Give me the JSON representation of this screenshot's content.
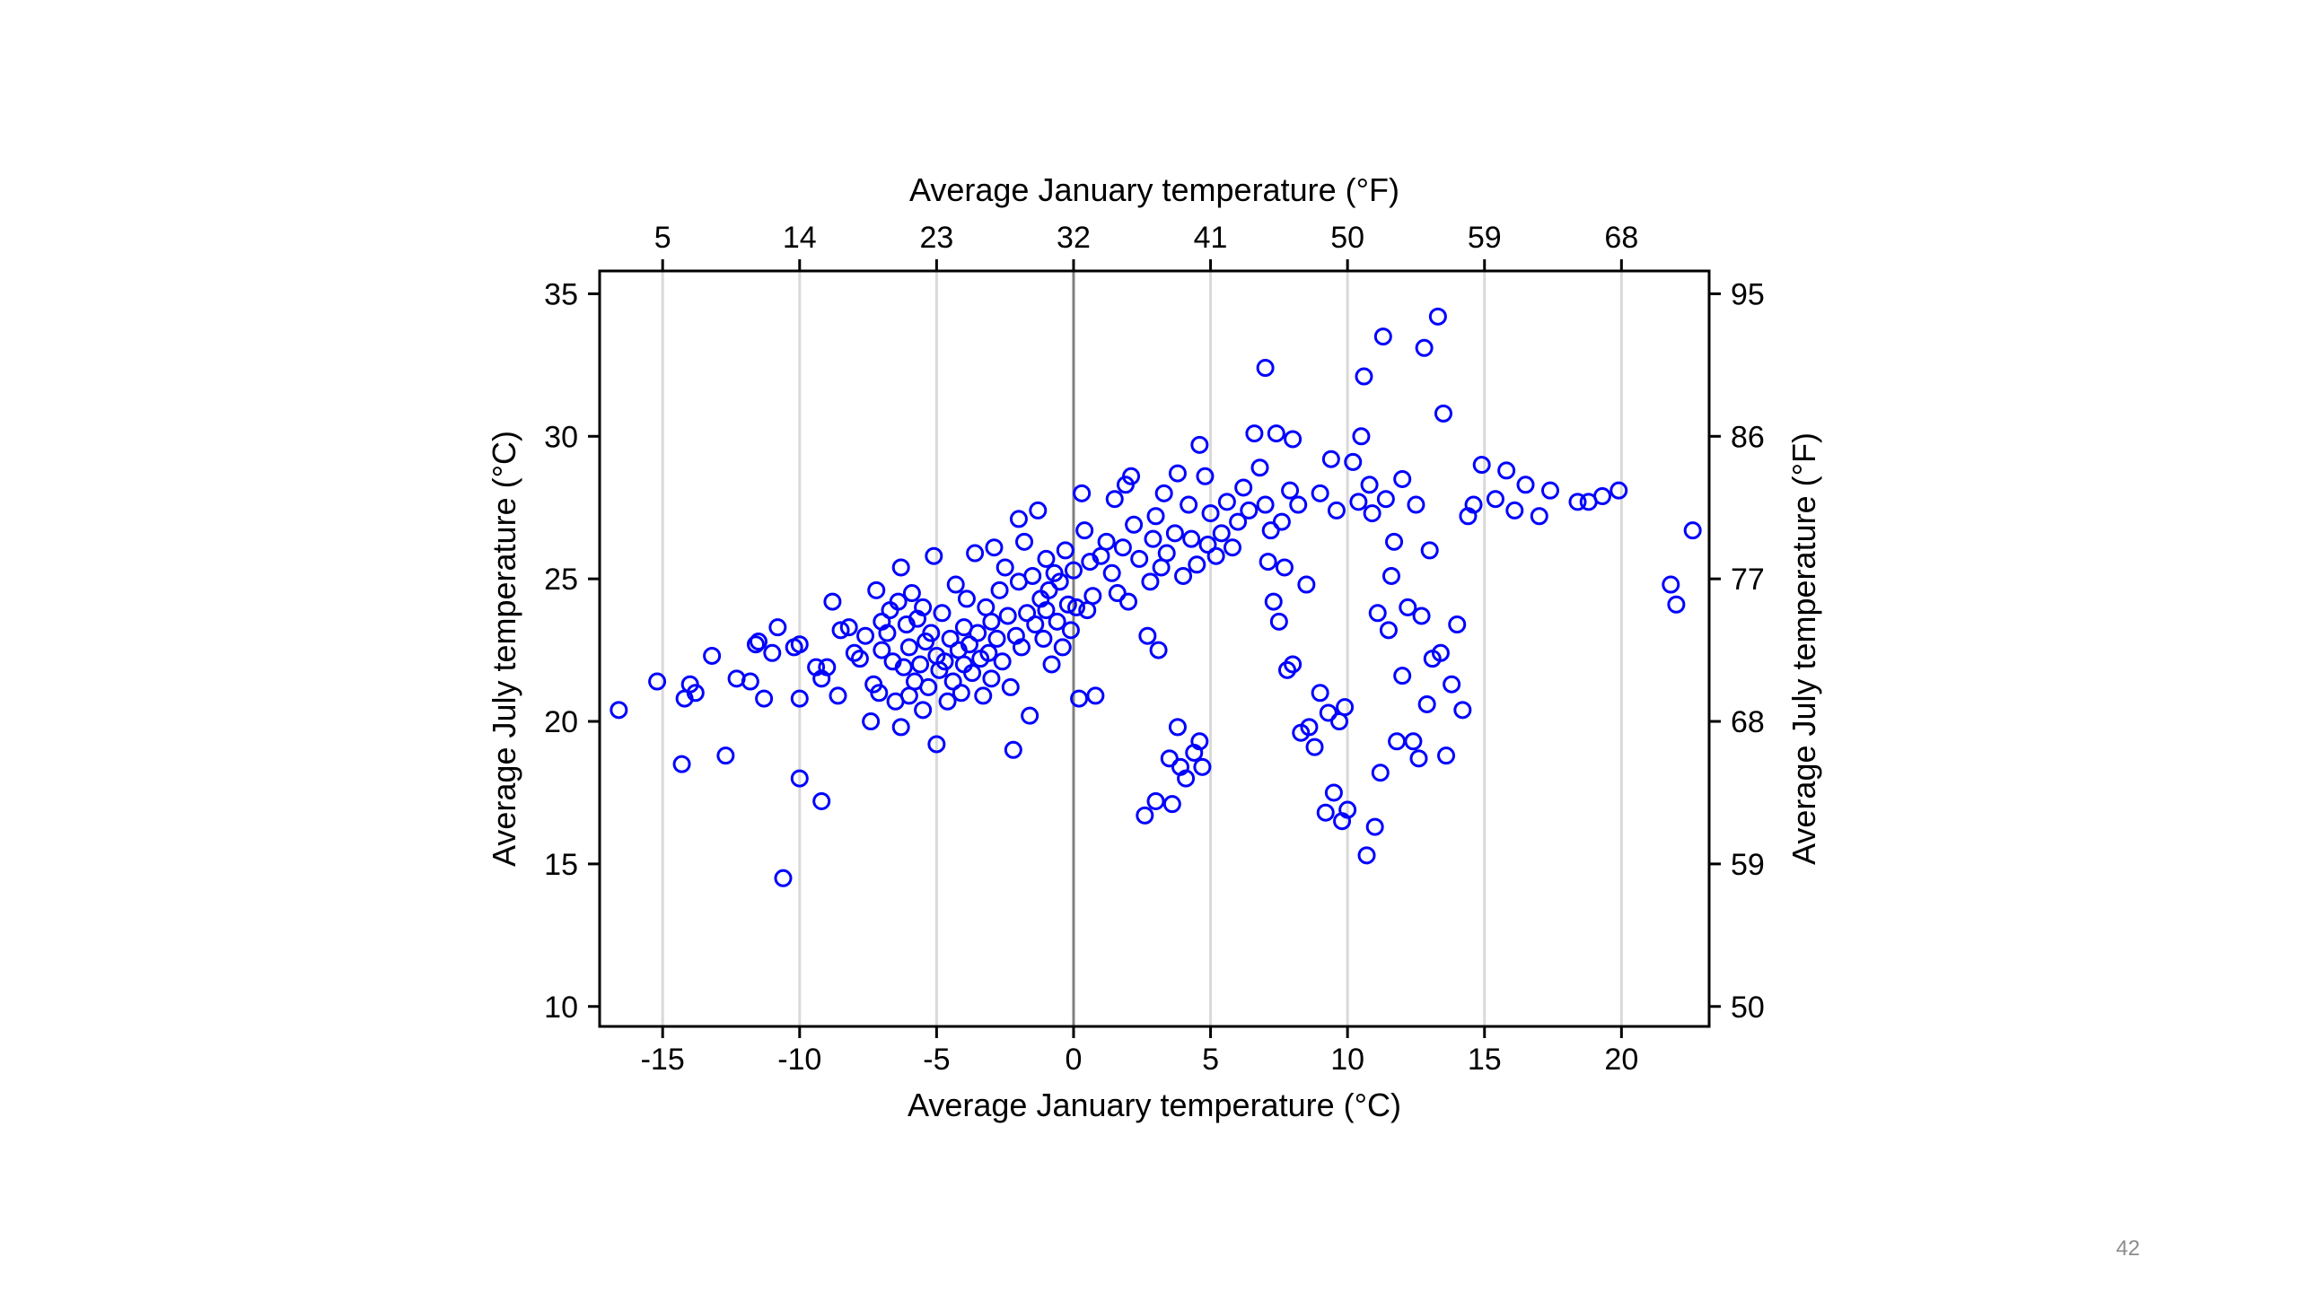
{
  "slide": {
    "page_number": "42"
  },
  "colors": {
    "marker": "#0000ff",
    "gridline": "#d9d9d9",
    "zero_line": "#808080",
    "axis": "#000000"
  },
  "chart_data": {
    "type": "scatter",
    "title": "",
    "xlabel": "Average January temperature (°C)",
    "ylabel": "Average July temperature (°C)",
    "x2label": "Average January temperature (°F)",
    "y2label": "Average July temperature (°F)",
    "xlim": [
      -17.3,
      23.2
    ],
    "ylim": [
      9.3,
      35.8
    ],
    "xticks": [
      -15,
      -10,
      -5,
      0,
      5,
      10,
      15,
      20
    ],
    "xtick_labels": [
      "-15",
      "-10",
      "-5",
      "0",
      "5",
      "10",
      "15",
      "20"
    ],
    "yticks": [
      10,
      15,
      20,
      25,
      30,
      35
    ],
    "ytick_labels": [
      "10",
      "15",
      "20",
      "25",
      "30",
      "35"
    ],
    "x2ticks": [
      -15,
      -10,
      -5,
      0,
      5,
      10,
      15,
      20
    ],
    "x2tick_labels": [
      "5",
      "14",
      "23",
      "32",
      "41",
      "50",
      "59",
      "68"
    ],
    "y2ticks": [
      10,
      15,
      20,
      25,
      30,
      35
    ],
    "y2tick_labels": [
      "50",
      "59",
      "68",
      "77",
      "86",
      "95"
    ],
    "grid": "vertical gridlines at x ticks",
    "marker": "hollow circle",
    "points": [
      [
        -16.6,
        20.4
      ],
      [
        -15.2,
        21.4
      ],
      [
        -14.3,
        18.5
      ],
      [
        -14.2,
        20.8
      ],
      [
        -14.0,
        21.3
      ],
      [
        -13.8,
        21.0
      ],
      [
        -13.2,
        22.3
      ],
      [
        -12.7,
        18.8
      ],
      [
        -12.3,
        21.5
      ],
      [
        -11.8,
        21.4
      ],
      [
        -11.6,
        22.7
      ],
      [
        -11.5,
        22.8
      ],
      [
        -11.3,
        20.8
      ],
      [
        -11.0,
        22.4
      ],
      [
        -10.8,
        23.3
      ],
      [
        -10.6,
        14.5
      ],
      [
        -10.2,
        22.6
      ],
      [
        -10.0,
        18.0
      ],
      [
        -10.0,
        22.7
      ],
      [
        -10.0,
        20.8
      ],
      [
        -9.4,
        21.9
      ],
      [
        -9.2,
        21.5
      ],
      [
        -9.2,
        17.2
      ],
      [
        -9.0,
        21.9
      ],
      [
        -8.8,
        24.2
      ],
      [
        -8.6,
        20.9
      ],
      [
        -8.5,
        23.2
      ],
      [
        -8.2,
        23.3
      ],
      [
        -8.0,
        22.4
      ],
      [
        -7.8,
        22.2
      ],
      [
        -7.6,
        23.0
      ],
      [
        -7.4,
        20.0
      ],
      [
        -7.3,
        21.3
      ],
      [
        -7.2,
        24.6
      ],
      [
        -7.1,
        21.0
      ],
      [
        -7.0,
        22.5
      ],
      [
        -7.0,
        23.5
      ],
      [
        -6.8,
        23.1
      ],
      [
        -6.7,
        23.9
      ],
      [
        -6.6,
        22.1
      ],
      [
        -6.5,
        20.7
      ],
      [
        -6.4,
        24.2
      ],
      [
        -6.3,
        25.4
      ],
      [
        -6.3,
        19.8
      ],
      [
        -6.2,
        21.9
      ],
      [
        -6.1,
        23.4
      ],
      [
        -6.0,
        22.6
      ],
      [
        -6.0,
        20.9
      ],
      [
        -5.9,
        24.5
      ],
      [
        -5.8,
        21.4
      ],
      [
        -5.7,
        23.6
      ],
      [
        -5.6,
        22.0
      ],
      [
        -5.5,
        20.4
      ],
      [
        -5.5,
        24.0
      ],
      [
        -5.4,
        22.8
      ],
      [
        -5.3,
        21.2
      ],
      [
        -5.2,
        23.1
      ],
      [
        -5.1,
        25.8
      ],
      [
        -5.0,
        22.3
      ],
      [
        -5.0,
        19.2
      ],
      [
        -4.9,
        21.8
      ],
      [
        -4.8,
        23.8
      ],
      [
        -4.7,
        22.1
      ],
      [
        -4.6,
        20.7
      ],
      [
        -4.5,
        22.9
      ],
      [
        -4.4,
        21.4
      ],
      [
        -4.3,
        24.8
      ],
      [
        -4.2,
        22.5
      ],
      [
        -4.1,
        21.0
      ],
      [
        -4.0,
        23.3
      ],
      [
        -4.0,
        22.0
      ],
      [
        -3.9,
        24.3
      ],
      [
        -3.8,
        22.7
      ],
      [
        -3.7,
        21.7
      ],
      [
        -3.6,
        25.9
      ],
      [
        -3.5,
        23.1
      ],
      [
        -3.4,
        22.2
      ],
      [
        -3.3,
        20.9
      ],
      [
        -3.2,
        24.0
      ],
      [
        -3.1,
        22.4
      ],
      [
        -3.0,
        23.5
      ],
      [
        -3.0,
        21.5
      ],
      [
        -2.9,
        26.1
      ],
      [
        -2.8,
        22.9
      ],
      [
        -2.7,
        24.6
      ],
      [
        -2.6,
        22.1
      ],
      [
        -2.5,
        25.4
      ],
      [
        -2.4,
        23.7
      ],
      [
        -2.3,
        21.2
      ],
      [
        -2.2,
        19.0
      ],
      [
        -2.1,
        23.0
      ],
      [
        -2.0,
        27.1
      ],
      [
        -2.0,
        24.9
      ],
      [
        -1.9,
        22.6
      ],
      [
        -1.8,
        26.3
      ],
      [
        -1.7,
        23.8
      ],
      [
        -1.6,
        20.2
      ],
      [
        -1.5,
        25.1
      ],
      [
        -1.4,
        23.4
      ],
      [
        -1.3,
        27.4
      ],
      [
        -1.2,
        24.3
      ],
      [
        -1.1,
        22.9
      ],
      [
        -1.0,
        25.7
      ],
      [
        -1.0,
        23.9
      ],
      [
        -0.9,
        24.6
      ],
      [
        -0.8,
        22.0
      ],
      [
        -0.7,
        25.2
      ],
      [
        -0.6,
        23.5
      ],
      [
        -0.5,
        24.9
      ],
      [
        -0.4,
        22.6
      ],
      [
        -0.3,
        26.0
      ],
      [
        -0.2,
        24.1
      ],
      [
        -0.1,
        23.2
      ],
      [
        0.0,
        25.3
      ],
      [
        0.1,
        24.0
      ],
      [
        0.2,
        20.8
      ],
      [
        0.3,
        28.0
      ],
      [
        0.4,
        26.7
      ],
      [
        0.5,
        23.9
      ],
      [
        0.6,
        25.6
      ],
      [
        0.7,
        24.4
      ],
      [
        0.8,
        20.9
      ],
      [
        1.0,
        25.8
      ],
      [
        1.2,
        26.3
      ],
      [
        1.4,
        25.2
      ],
      [
        1.5,
        27.8
      ],
      [
        1.6,
        24.5
      ],
      [
        1.8,
        26.1
      ],
      [
        1.9,
        28.3
      ],
      [
        2.0,
        24.2
      ],
      [
        2.1,
        28.6
      ],
      [
        2.2,
        26.9
      ],
      [
        2.4,
        25.7
      ],
      [
        2.6,
        16.7
      ],
      [
        2.7,
        23.0
      ],
      [
        2.8,
        24.9
      ],
      [
        2.9,
        26.4
      ],
      [
        3.0,
        27.2
      ],
      [
        3.0,
        17.2
      ],
      [
        3.1,
        22.5
      ],
      [
        3.2,
        25.4
      ],
      [
        3.3,
        28.0
      ],
      [
        3.4,
        25.9
      ],
      [
        3.5,
        18.7
      ],
      [
        3.6,
        17.1
      ],
      [
        3.7,
        26.6
      ],
      [
        3.8,
        19.8
      ],
      [
        3.8,
        28.7
      ],
      [
        3.9,
        18.4
      ],
      [
        4.0,
        25.1
      ],
      [
        4.1,
        18.0
      ],
      [
        4.2,
        27.6
      ],
      [
        4.3,
        26.4
      ],
      [
        4.4,
        18.9
      ],
      [
        4.5,
        25.5
      ],
      [
        4.6,
        19.3
      ],
      [
        4.6,
        29.7
      ],
      [
        4.7,
        18.4
      ],
      [
        4.8,
        28.6
      ],
      [
        4.9,
        26.2
      ],
      [
        5.0,
        27.3
      ],
      [
        5.2,
        25.8
      ],
      [
        5.4,
        26.6
      ],
      [
        5.6,
        27.7
      ],
      [
        5.8,
        26.1
      ],
      [
        6.0,
        27.0
      ],
      [
        6.2,
        28.2
      ],
      [
        6.4,
        27.4
      ],
      [
        6.6,
        30.1
      ],
      [
        6.8,
        28.9
      ],
      [
        7.0,
        32.4
      ],
      [
        7.0,
        27.6
      ],
      [
        7.1,
        25.6
      ],
      [
        7.2,
        26.7
      ],
      [
        7.3,
        24.2
      ],
      [
        7.4,
        30.1
      ],
      [
        7.5,
        23.5
      ],
      [
        7.6,
        27.0
      ],
      [
        7.7,
        25.4
      ],
      [
        7.8,
        21.8
      ],
      [
        7.9,
        28.1
      ],
      [
        8.0,
        29.9
      ],
      [
        8.0,
        22.0
      ],
      [
        8.2,
        27.6
      ],
      [
        8.3,
        19.6
      ],
      [
        8.5,
        24.8
      ],
      [
        8.6,
        19.8
      ],
      [
        8.8,
        19.1
      ],
      [
        9.0,
        28.0
      ],
      [
        9.0,
        21.0
      ],
      [
        9.2,
        16.8
      ],
      [
        9.3,
        20.3
      ],
      [
        9.4,
        29.2
      ],
      [
        9.5,
        17.5
      ],
      [
        9.6,
        27.4
      ],
      [
        9.7,
        20.0
      ],
      [
        9.8,
        16.5
      ],
      [
        9.9,
        20.5
      ],
      [
        10.0,
        16.9
      ],
      [
        10.2,
        29.1
      ],
      [
        10.4,
        27.7
      ],
      [
        10.5,
        30.0
      ],
      [
        10.6,
        32.1
      ],
      [
        10.7,
        15.3
      ],
      [
        10.8,
        28.3
      ],
      [
        10.9,
        27.3
      ],
      [
        11.0,
        16.3
      ],
      [
        11.1,
        23.8
      ],
      [
        11.2,
        18.2
      ],
      [
        11.3,
        33.5
      ],
      [
        11.4,
        27.8
      ],
      [
        11.5,
        23.2
      ],
      [
        11.6,
        25.1
      ],
      [
        11.7,
        26.3
      ],
      [
        11.8,
        19.3
      ],
      [
        12.0,
        21.6
      ],
      [
        12.0,
        28.5
      ],
      [
        12.2,
        24.0
      ],
      [
        12.4,
        19.3
      ],
      [
        12.5,
        27.6
      ],
      [
        12.6,
        18.7
      ],
      [
        12.7,
        23.7
      ],
      [
        12.8,
        33.1
      ],
      [
        12.9,
        20.6
      ],
      [
        13.0,
        26.0
      ],
      [
        13.1,
        22.2
      ],
      [
        13.3,
        34.2
      ],
      [
        13.4,
        22.4
      ],
      [
        13.5,
        30.8
      ],
      [
        13.6,
        18.8
      ],
      [
        13.8,
        21.3
      ],
      [
        14.0,
        23.4
      ],
      [
        14.2,
        20.4
      ],
      [
        14.4,
        27.2
      ],
      [
        14.6,
        27.6
      ],
      [
        14.9,
        29.0
      ],
      [
        15.4,
        27.8
      ],
      [
        15.8,
        28.8
      ],
      [
        16.1,
        27.4
      ],
      [
        16.5,
        28.3
      ],
      [
        17.0,
        27.2
      ],
      [
        17.4,
        28.1
      ],
      [
        18.4,
        27.7
      ],
      [
        18.8,
        27.7
      ],
      [
        19.3,
        27.9
      ],
      [
        19.9,
        28.1
      ],
      [
        21.8,
        24.8
      ],
      [
        22.0,
        24.1
      ],
      [
        22.6,
        26.7
      ]
    ]
  }
}
